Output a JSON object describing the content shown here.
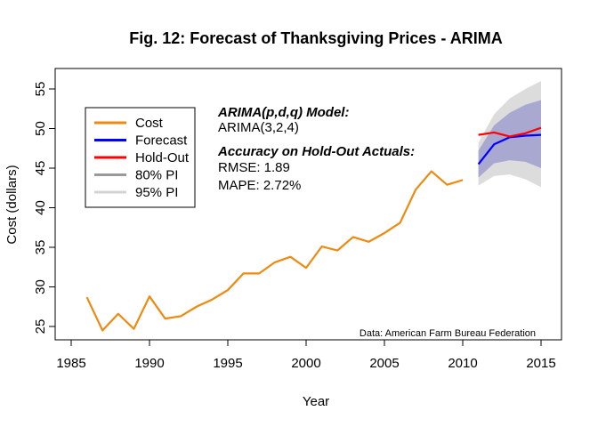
{
  "chart_data": {
    "type": "line",
    "title": "Fig. 12: Forecast of Thanksgiving Prices - ARIMA",
    "xlabel": "Year",
    "ylabel": "Cost (dollars)",
    "xlim": [
      1985,
      2016
    ],
    "ylim": [
      24,
      57.5
    ],
    "xticks": [
      1985,
      1990,
      1995,
      2000,
      2005,
      2010,
      2015
    ],
    "yticks": [
      25,
      30,
      35,
      40,
      45,
      50,
      55
    ],
    "grid": false,
    "legend_position": "top-left",
    "series": [
      {
        "name": "Cost",
        "color": "#ee8a10",
        "x": [
          1986,
          1987,
          1988,
          1989,
          1990,
          1991,
          1992,
          1993,
          1994,
          1995,
          1996,
          1997,
          1998,
          1999,
          2000,
          2001,
          2002,
          2003,
          2004,
          2005,
          2006,
          2007,
          2008,
          2009,
          2010
        ],
        "y": [
          28.7,
          24.5,
          26.6,
          24.7,
          28.8,
          26.0,
          26.3,
          27.5,
          28.4,
          29.6,
          31.7,
          31.7,
          33.1,
          33.8,
          32.4,
          35.1,
          34.6,
          36.3,
          35.7,
          36.8,
          38.1,
          42.3,
          44.6,
          42.9,
          43.5
        ]
      },
      {
        "name": "Forecast",
        "color": "#0000ff",
        "x": [
          2011,
          2012,
          2013,
          2014,
          2015
        ],
        "y": [
          45.5,
          48.0,
          48.9,
          49.1,
          49.2
        ]
      },
      {
        "name": "Hold-Out",
        "color": "#ff0000",
        "x": [
          2011,
          2012,
          2013,
          2014,
          2015
        ],
        "y": [
          49.2,
          49.5,
          49.0,
          49.4,
          50.1
        ]
      }
    ],
    "intervals": [
      {
        "name": "95% PI",
        "color": "#dcdcdc",
        "x": [
          2011,
          2012,
          2013,
          2014,
          2015
        ],
        "lower": [
          42.8,
          44.0,
          44.2,
          43.6,
          42.6
        ],
        "upper": [
          48.2,
          51.8,
          53.8,
          55.0,
          56.0
        ]
      },
      {
        "name": "80% PI",
        "color": "#a8a8d0",
        "x": [
          2011,
          2012,
          2013,
          2014,
          2015
        ],
        "lower": [
          43.8,
          45.6,
          46.0,
          45.8,
          45.0
        ],
        "upper": [
          47.2,
          50.4,
          52.0,
          53.0,
          53.6
        ]
      }
    ],
    "legend": [
      {
        "label": "Cost",
        "color": "#ee8a10"
      },
      {
        "label": "Forecast",
        "color": "#0000ff"
      },
      {
        "label": "Hold-Out",
        "color": "#ff0000"
      },
      {
        "label": "80% PI",
        "color": "#999999"
      },
      {
        "label": "95% PI",
        "color": "#d3d3d3"
      }
    ],
    "annotations": {
      "model_heading": "ARIMA(p,d,q) Model:",
      "model_value": "ARIMA(3,2,4)",
      "accuracy_heading": "Accuracy on Hold-Out Actuals:",
      "rmse": "RMSE: 1.89",
      "mape": "MAPE: 2.72%",
      "source": "Data: American Farm Bureau Federation"
    }
  }
}
